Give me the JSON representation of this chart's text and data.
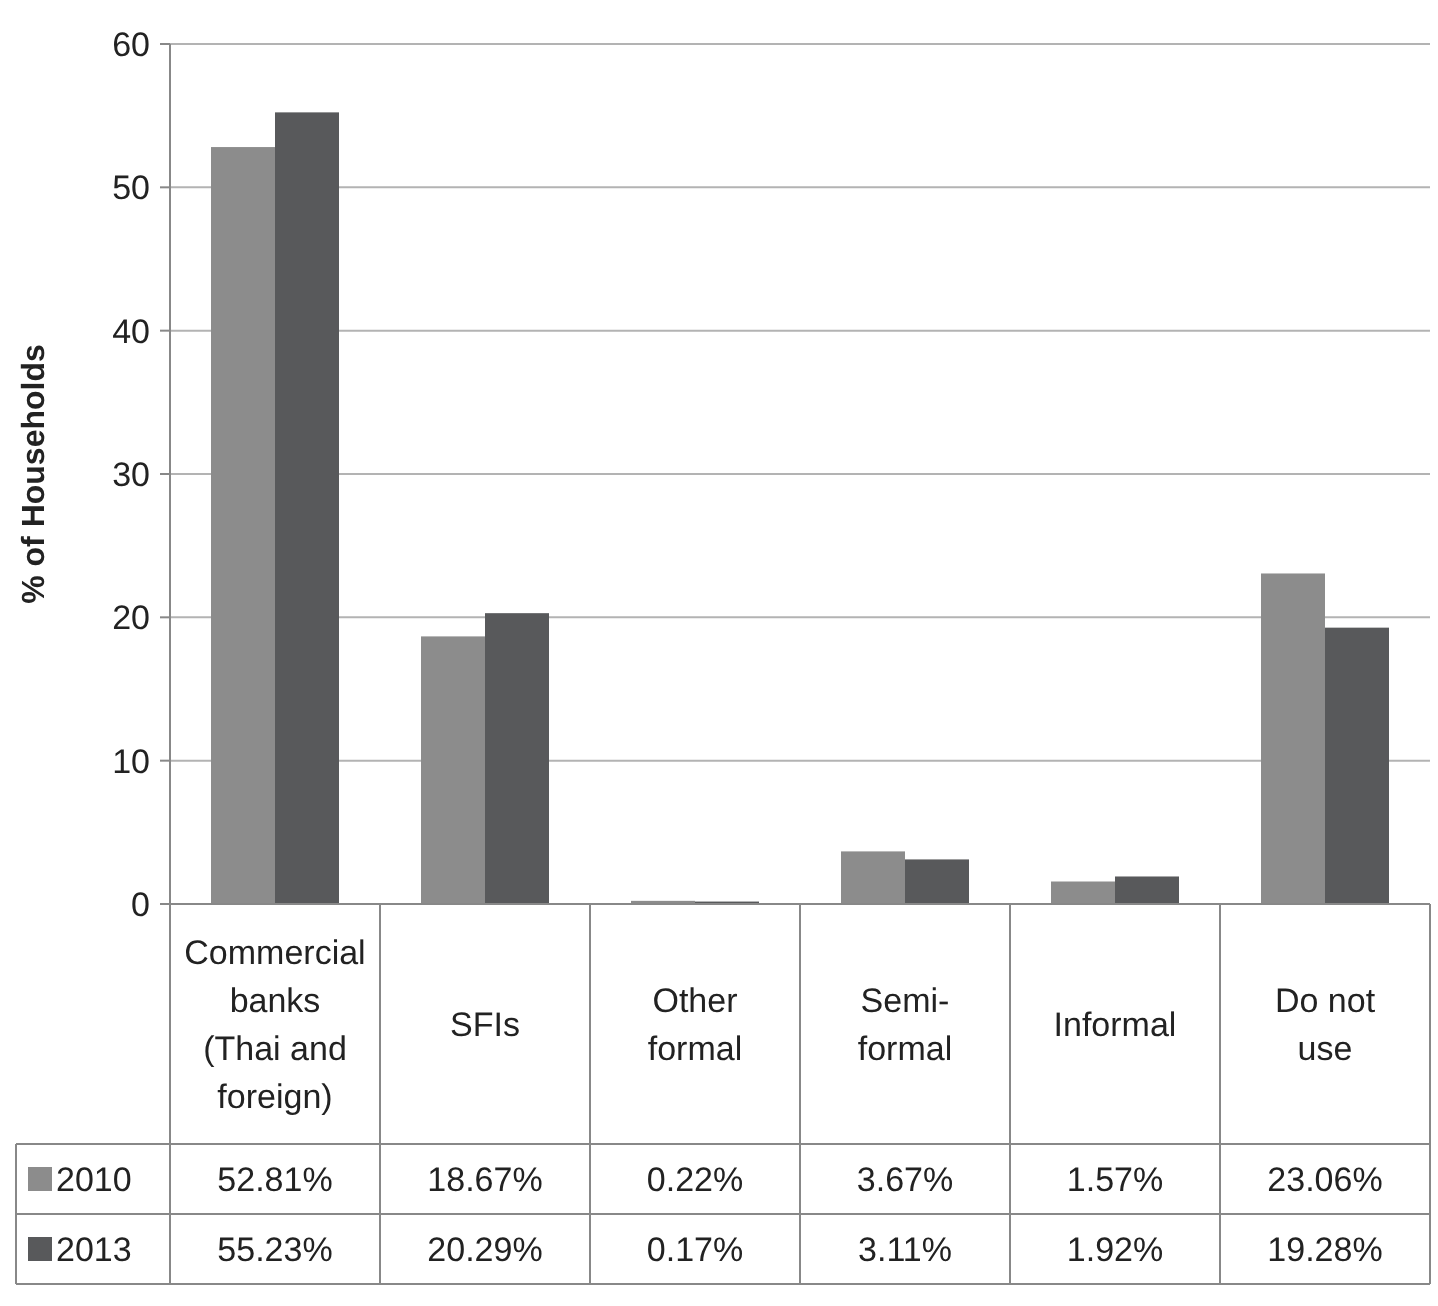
{
  "chart_data": {
    "type": "bar",
    "ylabel": "% of Households",
    "categories": [
      "Commercial banks (Thai and foreign)",
      "SFIs",
      "Other formal",
      "Semi-formal",
      "Informal",
      "Do not use"
    ],
    "series": [
      {
        "name": "2010",
        "color": "#8c8c8c",
        "values": [
          52.81,
          18.67,
          0.22,
          3.67,
          1.57,
          23.06
        ],
        "value_labels": [
          "52.81%",
          "18.67%",
          "0.22%",
          "3.67%",
          "1.57%",
          "23.06%"
        ]
      },
      {
        "name": "2013",
        "color": "#58595b",
        "values": [
          55.23,
          20.29,
          0.17,
          3.11,
          1.92,
          19.28
        ],
        "value_labels": [
          "55.23%",
          "20.29%",
          "0.17%",
          "3.11%",
          "1.92%",
          "19.28%"
        ]
      }
    ],
    "ylim": [
      0,
      60
    ],
    "yticks": [
      0,
      10,
      20,
      30,
      40,
      50,
      60
    ],
    "grid": "y",
    "legend": "bottom"
  }
}
